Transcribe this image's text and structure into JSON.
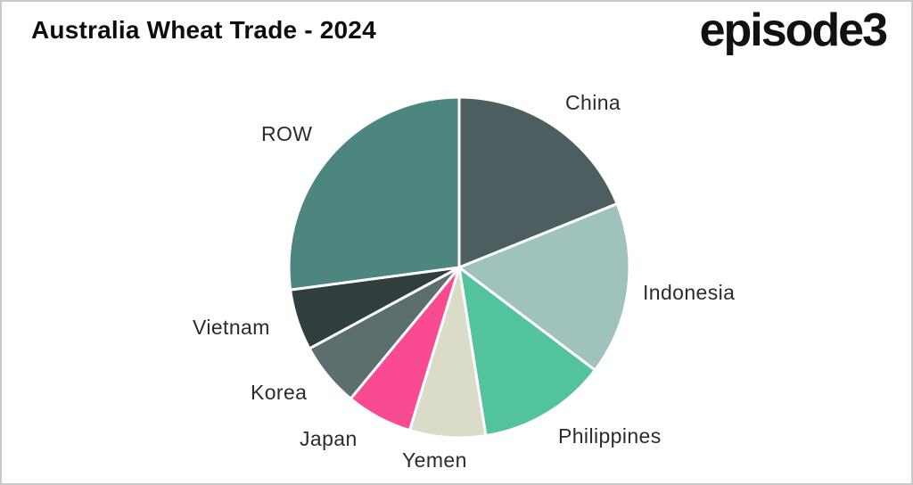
{
  "header": {
    "title": "Australia Wheat Trade - 2024",
    "logo": "episode3"
  },
  "chart_data": {
    "type": "pie",
    "title": "Australia Wheat Trade - 2024",
    "categories": [
      "China",
      "Indonesia",
      "Philippines",
      "Yemen",
      "Japan",
      "Korea",
      "Vietnam",
      "ROW"
    ],
    "values": [
      18.9,
      16.4,
      12.2,
      7.2,
      6.3,
      6.1,
      5.8,
      27.1
    ],
    "values_unit": "%",
    "colors": [
      "#4c5e60",
      "#9fc2bd",
      "#53c39e",
      "#dbdcc7",
      "#fa4a92",
      "#5c6e6e",
      "#303e3d",
      "#4d867f"
    ],
    "start_angle_clockwise_from_top_deg": 0,
    "slice_separator_color": "#ffffff",
    "legend_position": "none",
    "label_placement": "outside"
  }
}
